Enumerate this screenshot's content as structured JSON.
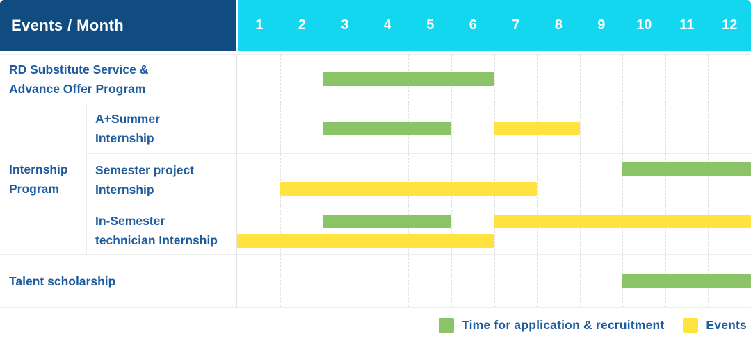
{
  "header": {
    "corner_label": "Events / Month",
    "months": [
      "1",
      "2",
      "3",
      "4",
      "5",
      "6",
      "7",
      "8",
      "9",
      "10",
      "11",
      "12"
    ]
  },
  "group": {
    "label": "Internship Program",
    "label_lines": [
      "Internship",
      "Program"
    ]
  },
  "rows": [
    {
      "label": "RD Substitute Service & Advance Offer Program",
      "label_lines": [
        "RD Substitute Service &",
        "Advance Offer Program"
      ]
    },
    {
      "label": "A+Summer Internship",
      "label_lines": [
        "A+Summer",
        "Internship"
      ],
      "group": "Internship Program"
    },
    {
      "label": "Semester project Internship",
      "label_lines": [
        "Semester project",
        "Internship"
      ],
      "group": "Internship Program"
    },
    {
      "label": "In-Semester technician Internship",
      "label_lines": [
        "In-Semester",
        "technician Internship"
      ],
      "group": "Internship Program"
    },
    {
      "label": "Talent scholarship",
      "label_lines": [
        "Talent scholarship"
      ]
    }
  ],
  "legend": {
    "items": [
      {
        "kind": "application",
        "label": "Time for application & recruitment",
        "color": "#8BC466"
      },
      {
        "kind": "event",
        "label": "Events",
        "color": "#FFE33E"
      }
    ]
  },
  "colors": {
    "header_bg": "#114C80",
    "month_header_bg": "#12D7EF",
    "label_text": "#1E5C9E",
    "application_bar": "#8BC466",
    "event_bar": "#FFE33E",
    "grid_line": "#ECECEC"
  },
  "chart_data": {
    "type": "gantt",
    "title": "Events / Month",
    "xlabel": "Month",
    "x_ticks": [
      1,
      2,
      3,
      4,
      5,
      6,
      7,
      8,
      9,
      10,
      11,
      12
    ],
    "x_range": [
      1,
      12
    ],
    "grid": true,
    "legend_position": "bottom-right",
    "rows": [
      {
        "label": "RD Substitute Service & Advance Offer Program",
        "group": null,
        "bars": [
          {
            "kind": "application",
            "start_month": 3,
            "end_month": 6,
            "line": "center"
          }
        ]
      },
      {
        "label": "A+Summer Internship",
        "group": "Internship Program",
        "bars": [
          {
            "kind": "application",
            "start_month": 3,
            "end_month": 5,
            "line": "center"
          },
          {
            "kind": "event",
            "start_month": 7,
            "end_month": 8,
            "line": "center"
          }
        ]
      },
      {
        "label": "Semester project Internship",
        "group": "Internship Program",
        "bars": [
          {
            "kind": "application",
            "start_month": 10,
            "end_month": 12,
            "line": "top"
          },
          {
            "kind": "event",
            "start_month": 2,
            "end_month": 7,
            "line": "bottom"
          }
        ]
      },
      {
        "label": "In-Semester technician Internship",
        "group": "Internship Program",
        "bars": [
          {
            "kind": "application",
            "start_month": 3,
            "end_month": 5,
            "line": "top"
          },
          {
            "kind": "event",
            "start_month": 7,
            "end_month": 12,
            "line": "top"
          },
          {
            "kind": "event",
            "start_month": 1,
            "end_month": 6,
            "line": "bottom"
          }
        ]
      },
      {
        "label": "Talent scholarship",
        "group": null,
        "bars": [
          {
            "kind": "application",
            "start_month": 10,
            "end_month": 12,
            "line": "center"
          }
        ]
      }
    ],
    "legend": [
      {
        "kind": "application",
        "label": "Time for application & recruitment"
      },
      {
        "kind": "event",
        "label": "Events"
      }
    ]
  }
}
